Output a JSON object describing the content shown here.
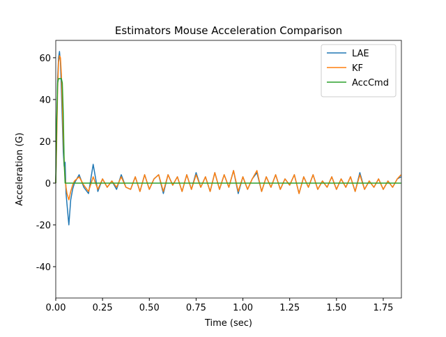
{
  "chart_data": {
    "type": "line",
    "title": "Estimators Mouse Acceleration Comparison",
    "xlabel": "Time (sec)",
    "ylabel": "Acceleration (G)",
    "x": [
      0,
      0.005,
      0.01,
      0.015,
      0.02,
      0.025,
      0.03,
      0.035,
      0.04,
      0.045,
      0.05,
      0.055,
      0.06,
      0.07,
      0.08,
      0.09,
      0.1,
      0.125,
      0.15,
      0.175,
      0.2,
      0.225,
      0.25,
      0.275,
      0.3,
      0.325,
      0.35,
      0.375,
      0.4,
      0.425,
      0.45,
      0.475,
      0.5,
      0.525,
      0.55,
      0.575,
      0.6,
      0.625,
      0.65,
      0.675,
      0.7,
      0.725,
      0.75,
      0.775,
      0.8,
      0.825,
      0.85,
      0.875,
      0.9,
      0.925,
      0.95,
      0.975,
      1.0,
      1.025,
      1.05,
      1.075,
      1.1,
      1.125,
      1.15,
      1.175,
      1.2,
      1.225,
      1.25,
      1.275,
      1.3,
      1.325,
      1.35,
      1.375,
      1.4,
      1.425,
      1.45,
      1.475,
      1.5,
      1.525,
      1.55,
      1.575,
      1.6,
      1.625,
      1.65,
      1.675,
      1.7,
      1.725,
      1.75,
      1.775,
      1.8,
      1.825,
      1.845
    ],
    "series": [
      {
        "name": "LAE",
        "color": "#1f77b4",
        "values": [
          0,
          25,
          50,
          60,
          63,
          58,
          45,
          30,
          15,
          8,
          10,
          -5,
          -10,
          -20,
          -8,
          -3,
          0,
          4,
          -2,
          -5,
          9,
          -4,
          2,
          -2,
          1,
          -3,
          4,
          -2,
          -3,
          3,
          -4,
          4,
          -3,
          2,
          4,
          -5,
          4,
          -1,
          3,
          -4,
          4,
          -3,
          5,
          -2,
          3,
          -4,
          5,
          -3,
          4,
          -2,
          6,
          -5,
          3,
          -3,
          2,
          5,
          -4,
          3,
          -2,
          4,
          -3,
          2,
          -1,
          4,
          -5,
          3,
          -2,
          4,
          -3,
          1,
          -2,
          3,
          -3,
          2,
          -2,
          3,
          -4,
          5,
          -3,
          1,
          -2,
          2,
          -3,
          1,
          -2,
          2,
          3
        ]
      },
      {
        "name": "KF",
        "color": "#ff7f0e",
        "values": [
          0,
          20,
          45,
          58,
          61,
          60,
          52,
          38,
          22,
          10,
          2,
          -2,
          -5,
          -8,
          -4,
          -1,
          1,
          3,
          -1,
          -4,
          3,
          -3,
          2,
          -2,
          1,
          -2,
          3,
          -2,
          -3,
          3,
          -4,
          4,
          -3,
          2,
          4,
          -4,
          4,
          -1,
          3,
          -4,
          4,
          -3,
          4,
          -2,
          3,
          -4,
          5,
          -3,
          4,
          -2,
          6,
          -4,
          3,
          -3,
          2,
          6,
          -4,
          3,
          -2,
          4,
          -3,
          2,
          -1,
          4,
          -5,
          3,
          -2,
          4,
          -3,
          1,
          -2,
          3,
          -3,
          2,
          -2,
          3,
          -4,
          4,
          -3,
          1,
          -2,
          2,
          -3,
          1,
          -2,
          2,
          4
        ]
      },
      {
        "name": "AccCmd",
        "color": "#2ca02c",
        "values": [
          0,
          30,
          48,
          50,
          50,
          50,
          50,
          48,
          34,
          10,
          0,
          0,
          0,
          0,
          0,
          0,
          0,
          0,
          0,
          0,
          0,
          0,
          0,
          0,
          0,
          0,
          0,
          0,
          0,
          0,
          0,
          0,
          0,
          0,
          0,
          0,
          0,
          0,
          0,
          0,
          0,
          0,
          0,
          0,
          0,
          0,
          0,
          0,
          0,
          0,
          0,
          0,
          0,
          0,
          0,
          0,
          0,
          0,
          0,
          0,
          0,
          0,
          0,
          0,
          0,
          0,
          0,
          0,
          0,
          0,
          0,
          0,
          0,
          0,
          0,
          0,
          0,
          0,
          0,
          0,
          0,
          0,
          0,
          0,
          0,
          0,
          0
        ]
      }
    ],
    "xlim": [
      0,
      1.847
    ],
    "ylim": [
      -55,
      68.3
    ],
    "xticks": [
      {
        "value": 0,
        "label": "0.00"
      },
      {
        "value": 0.25,
        "label": "0.25"
      },
      {
        "value": 0.5,
        "label": "0.50"
      },
      {
        "value": 0.75,
        "label": "0.75"
      },
      {
        "value": 1,
        "label": "1.00"
      },
      {
        "value": 1.25,
        "label": "1.25"
      },
      {
        "value": 1.5,
        "label": "1.50"
      },
      {
        "value": 1.75,
        "label": "1.75"
      }
    ],
    "yticks": [
      -40,
      -20,
      0,
      20,
      40,
      60
    ],
    "legend": "upper right"
  }
}
